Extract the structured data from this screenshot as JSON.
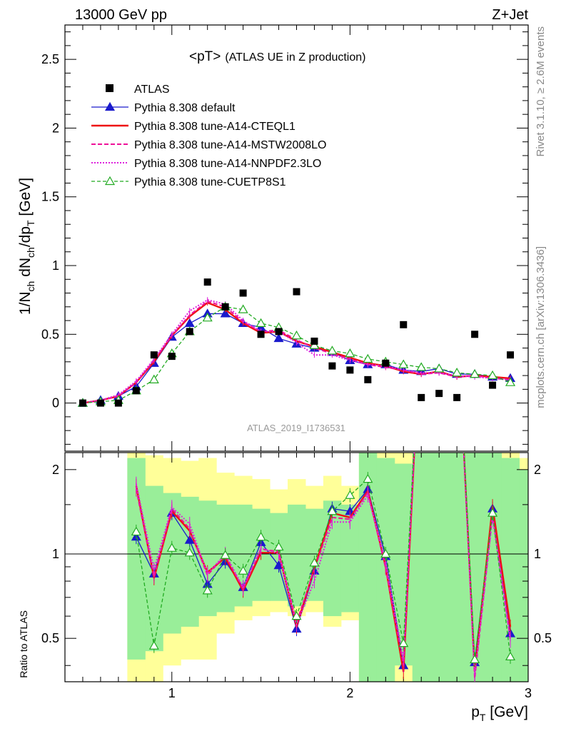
{
  "header": {
    "left": "13000 GeV pp",
    "right": "Z+Jet",
    "plot_title": "<pT>",
    "plot_title_sub": "(ATLAS UE in Z production)",
    "side_top": "Rivet 3.1.10, ≥ 2.6M events",
    "side_bottom": "mcplots.cern.ch [arXiv:1306.3436]",
    "analysis": "ATLAS_2019_I1736531"
  },
  "axes": {
    "main_ylabel": "1/N_ch dN_ch/dp_T [GeV]",
    "ratio_ylabel": "Ratio to ATLAS",
    "xlabel": "p_T [GeV]",
    "x_ticks": [
      "1",
      "2",
      "3"
    ],
    "main_y_ticks": [
      "0",
      "0.5",
      "1",
      "1.5",
      "2",
      "2.5"
    ],
    "ratio_y_ticks": [
      "0.5",
      "1",
      "2"
    ]
  },
  "legend": [
    {
      "label": "ATLAS",
      "color": "#000000",
      "style": "square"
    },
    {
      "label": "Pythia 8.308 default",
      "color": "#1a1acc",
      "style": "solid-triangle"
    },
    {
      "label": "Pythia 8.308 tune-A14-CTEQL1",
      "color": "#ee1111",
      "style": "solid-thick"
    },
    {
      "label": "Pythia 8.308 tune-A14-MSTW2008LO",
      "color": "#ee1199",
      "style": "dashed"
    },
    {
      "label": "Pythia 8.308 tune-A14-NNPDF2.3LO",
      "color": "#dd22dd",
      "style": "dotted"
    },
    {
      "label": "Pythia 8.308 tune-CUETP8S1",
      "color": "#22aa22",
      "style": "dashed-open-triangle"
    }
  ],
  "chart_data": {
    "type": "line",
    "xlim": [
      0.4,
      3.0
    ],
    "ylim": [
      -0.35,
      2.75
    ],
    "ratio_ylim_log": [
      0.35,
      2.3
    ],
    "x": [
      0.5,
      0.6,
      0.7,
      0.8,
      0.9,
      1.0,
      1.1,
      1.2,
      1.3,
      1.4,
      1.5,
      1.6,
      1.7,
      1.8,
      1.9,
      2.0,
      2.1,
      2.2,
      2.3,
      2.4,
      2.5,
      2.6,
      2.7,
      2.8,
      2.9
    ],
    "atlas": [
      0.0,
      0.0,
      0.0,
      0.09,
      0.35,
      0.34,
      0.52,
      0.88,
      0.7,
      0.8,
      0.5,
      0.52,
      0.81,
      0.45,
      0.27,
      0.24,
      0.17,
      0.29,
      0.57,
      0.04,
      0.07,
      0.04,
      0.5,
      0.13,
      0.35
    ],
    "series": [
      {
        "name": "Pythia 8.308 default",
        "values": [
          0.0,
          0.02,
          0.05,
          0.12,
          0.29,
          0.48,
          0.58,
          0.65,
          0.65,
          0.58,
          0.55,
          0.47,
          0.43,
          0.4,
          0.37,
          0.31,
          0.28,
          0.28,
          0.24,
          0.23,
          0.25,
          0.21,
          0.21,
          0.19,
          0.18
        ]
      },
      {
        "name": "Pythia 8.308 tune-A14-CTEQL1",
        "values": [
          0.0,
          0.02,
          0.05,
          0.15,
          0.3,
          0.49,
          0.63,
          0.73,
          0.68,
          0.58,
          0.51,
          0.52,
          0.45,
          0.41,
          0.37,
          0.33,
          0.29,
          0.27,
          0.23,
          0.21,
          0.23,
          0.19,
          0.2,
          0.19,
          0.18
        ]
      },
      {
        "name": "Pythia 8.308 tune-A14-MSTW2008LO",
        "values": [
          0.0,
          0.02,
          0.05,
          0.15,
          0.31,
          0.49,
          0.64,
          0.74,
          0.7,
          0.59,
          0.52,
          0.53,
          0.46,
          0.4,
          0.36,
          0.32,
          0.28,
          0.26,
          0.24,
          0.21,
          0.22,
          0.19,
          0.2,
          0.18,
          0.17
        ]
      },
      {
        "name": "Pythia 8.308 tune-A14-NNPDF2.3LO",
        "values": [
          0.0,
          0.02,
          0.06,
          0.16,
          0.32,
          0.5,
          0.67,
          0.75,
          0.72,
          0.6,
          0.52,
          0.52,
          0.44,
          0.35,
          0.35,
          0.31,
          0.28,
          0.27,
          0.24,
          0.22,
          0.22,
          0.2,
          0.19,
          0.18,
          0.17
        ]
      },
      {
        "name": "Pythia 8.308 tune-CUETP8S1",
        "values": [
          0.0,
          0.01,
          0.02,
          0.09,
          0.17,
          0.36,
          0.52,
          0.62,
          0.7,
          0.68,
          0.58,
          0.55,
          0.49,
          0.42,
          0.38,
          0.36,
          0.32,
          0.3,
          0.28,
          0.26,
          0.25,
          0.22,
          0.21,
          0.2,
          0.15
        ]
      }
    ],
    "ratio_series": [
      {
        "name": "Pythia 8.308 default",
        "values": [
          null,
          null,
          null,
          1.15,
          0.85,
          1.4,
          1.12,
          0.78,
          0.94,
          0.76,
          1.1,
          0.91,
          0.54,
          0.87,
          1.45,
          1.42,
          1.7,
          0.98,
          0.4,
          null,
          null,
          null,
          0.41,
          1.45,
          0.52
        ]
      },
      {
        "name": "Pythia 8.308 tune-A14-CTEQL1",
        "values": [
          null,
          null,
          null,
          1.75,
          0.82,
          1.42,
          1.21,
          0.86,
          0.97,
          0.74,
          1.01,
          1.01,
          0.55,
          0.89,
          1.4,
          1.35,
          1.68,
          0.9,
          0.38,
          null,
          null,
          null,
          0.38,
          1.48,
          0.55
        ]
      },
      {
        "name": "Pythia 8.308 tune-A14-MSTW2008LO",
        "values": [
          null,
          null,
          null,
          1.7,
          0.83,
          1.45,
          1.23,
          0.84,
          0.99,
          0.75,
          1.04,
          1.02,
          0.57,
          0.88,
          1.35,
          1.33,
          1.66,
          0.89,
          0.4,
          null,
          null,
          null,
          0.36,
          1.38,
          0.5
        ]
      },
      {
        "name": "Pythia 8.308 tune-A14-NNPDF2.3LO",
        "values": [
          null,
          null,
          null,
          1.78,
          0.88,
          1.47,
          1.28,
          0.85,
          1.0,
          0.76,
          1.05,
          1.0,
          0.56,
          0.8,
          1.3,
          1.3,
          1.62,
          0.94,
          0.42,
          null,
          null,
          null,
          0.37,
          1.35,
          0.49
        ]
      },
      {
        "name": "Pythia 8.308 tune-CUETP8S1",
        "values": [
          null,
          null,
          null,
          1.2,
          0.47,
          1.05,
          1.01,
          0.74,
          0.99,
          0.87,
          1.15,
          1.06,
          0.6,
          0.93,
          1.42,
          1.62,
          1.85,
          1.0,
          0.48,
          null,
          null,
          null,
          0.42,
          1.4,
          0.43
        ]
      }
    ]
  }
}
